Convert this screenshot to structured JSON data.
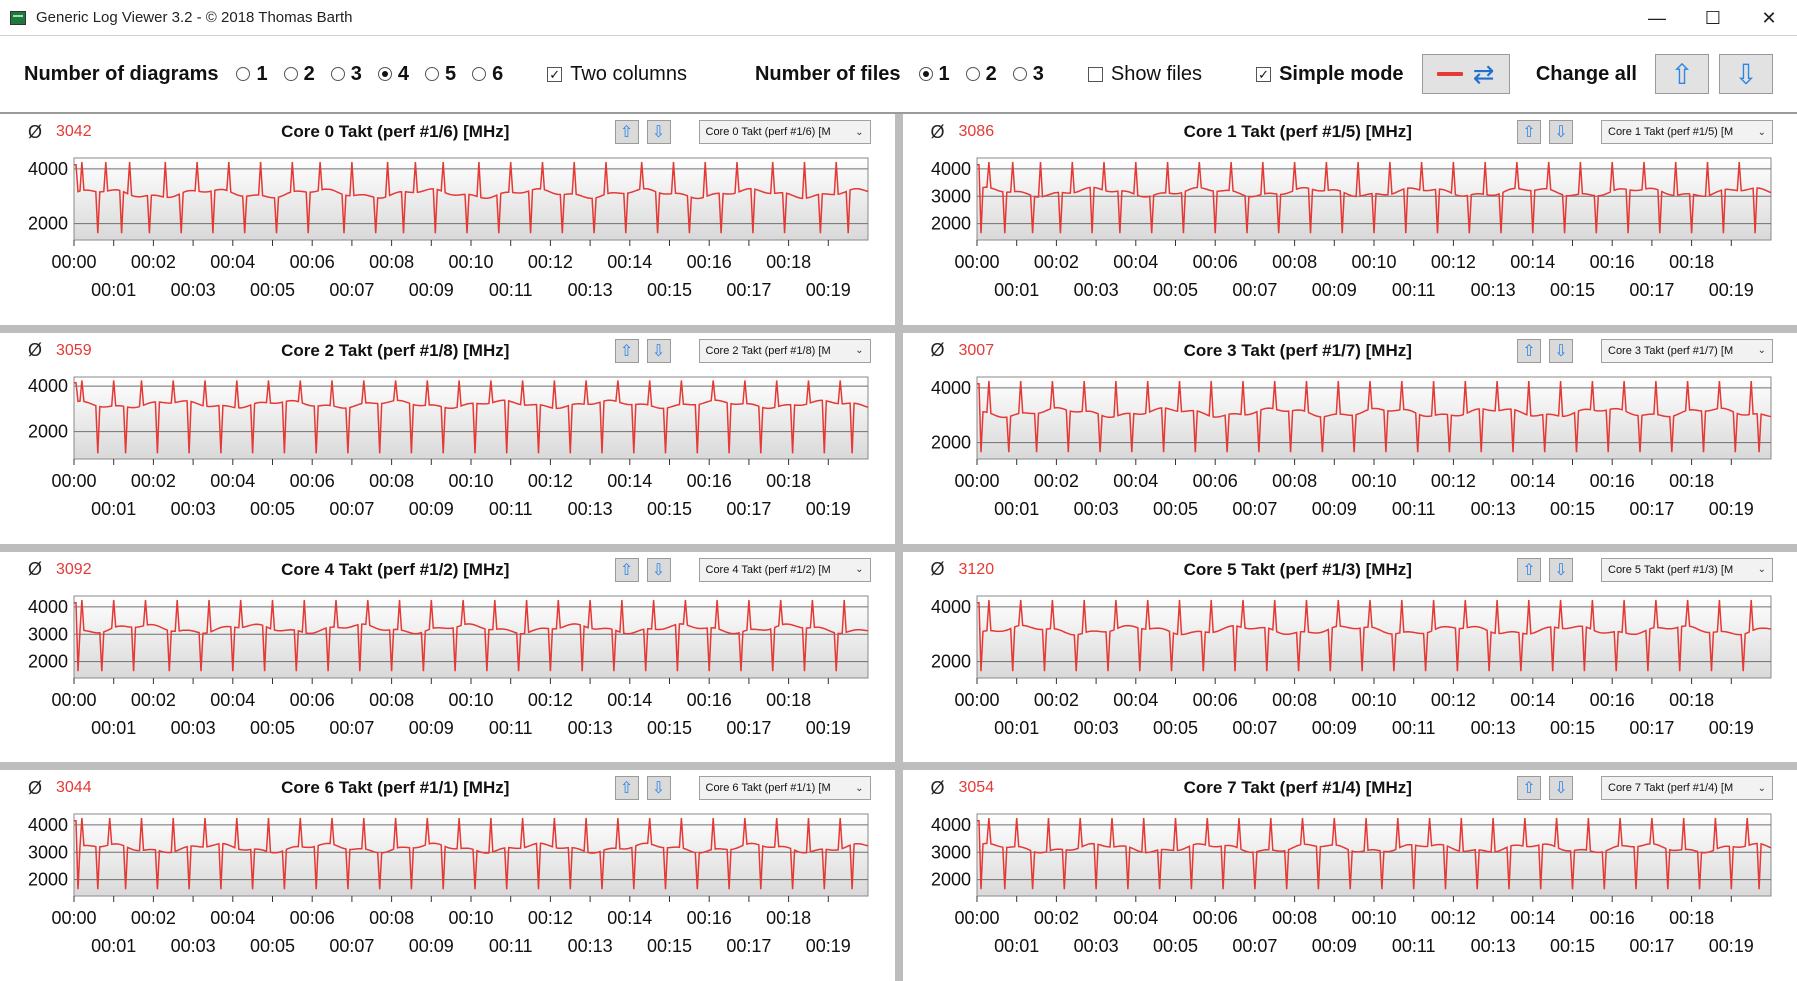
{
  "window": {
    "title": "Generic Log Viewer 3.2 - © 2018 Thomas Barth",
    "controls": {
      "minimize": "—",
      "maximize": "☐",
      "close": "✕"
    }
  },
  "toolbar": {
    "diagrams_label": "Number of diagrams",
    "diagram_options": [
      "1",
      "2",
      "3",
      "4",
      "5",
      "6"
    ],
    "diagram_selected": "4",
    "two_columns_label": "Two columns",
    "two_columns_checked": true,
    "files_label": "Number of files",
    "file_options": [
      "1",
      "2",
      "3"
    ],
    "file_selected": "1",
    "show_files_label": "Show files",
    "show_files_checked": false,
    "simple_mode_label": "Simple mode",
    "simple_mode_checked": true,
    "change_all_label": "Change all"
  },
  "colors": {
    "series": "#e53935",
    "avg": "#e53935",
    "accent_blue": "#2d86e6"
  },
  "panels": [
    {
      "avg_symbol": "Ø",
      "avg": "3042",
      "title": "Core 0 Takt (perf #1/6) [MHz]",
      "selector": "Core 0 Takt (perf #1/6) [M"
    },
    {
      "avg_symbol": "Ø",
      "avg": "3086",
      "title": "Core 1 Takt (perf #1/5) [MHz]",
      "selector": "Core 1 Takt (perf #1/5) [M"
    },
    {
      "avg_symbol": "Ø",
      "avg": "3059",
      "title": "Core 2 Takt (perf #1/8) [MHz]",
      "selector": "Core 2 Takt (perf #1/8) [M"
    },
    {
      "avg_symbol": "Ø",
      "avg": "3007",
      "title": "Core 3 Takt (perf #1/7) [MHz]",
      "selector": "Core 3 Takt (perf #1/7) [M"
    },
    {
      "avg_symbol": "Ø",
      "avg": "3092",
      "title": "Core 4 Takt (perf #1/2) [MHz]",
      "selector": "Core 4 Takt (perf #1/2) [M"
    },
    {
      "avg_symbol": "Ø",
      "avg": "3120",
      "title": "Core 5 Takt (perf #1/3) [MHz]",
      "selector": "Core 5 Takt (perf #1/3) [M"
    },
    {
      "avg_symbol": "Ø",
      "avg": "3044",
      "title": "Core 6 Takt (perf #1/1) [MHz]",
      "selector": "Core 6 Takt (perf #1/1) [M"
    },
    {
      "avg_symbol": "Ø",
      "avg": "3054",
      "title": "Core 7 Takt (perf #1/4) [MHz]",
      "selector": "Core 7 Takt (perf #1/4) [M"
    }
  ],
  "chart_data": [
    {
      "type": "line",
      "title": "Core 0 Takt (perf #1/6) [MHz]",
      "x_range": [
        0,
        20
      ],
      "ylim": [
        1400,
        4400
      ],
      "grid": true,
      "y_ticks": [
        2000,
        4000
      ],
      "x_ticks_top": [
        "00:00",
        "00:02",
        "00:04",
        "00:06",
        "00:08",
        "00:10",
        "00:12",
        "00:14",
        "00:16",
        "00:18"
      ],
      "x_ticks_bottom": [
        "00:01",
        "00:03",
        "00:05",
        "00:07",
        "00:09",
        "00:11",
        "00:13",
        "00:15",
        "00:17",
        "00:19"
      ],
      "series": [
        {
          "name": "Core 0 Takt",
          "baseline": 3100,
          "spikes_up": [
            0.2,
            0.8,
            1.4,
            2.3,
            3.1,
            3.9,
            4.7,
            5.5,
            6.2,
            7.0,
            7.9,
            8.6,
            9.3,
            10.2,
            11.0,
            11.8,
            12.6,
            13.4,
            14.3,
            15.1,
            15.9,
            16.7,
            17.6,
            18.4,
            19.2
          ],
          "spikes_down": [
            0.6,
            1.2,
            1.9,
            2.7,
            3.5,
            4.3,
            5.1,
            5.9,
            6.8,
            7.6,
            8.3,
            9.1,
            9.9,
            10.7,
            11.5,
            12.3,
            13.1,
            13.9,
            14.7,
            15.5,
            16.3,
            17.1,
            17.9,
            18.8,
            19.5
          ]
        }
      ]
    },
    {
      "type": "line",
      "title": "Core 1 Takt (perf #1/5) [MHz]",
      "x_range": [
        0,
        20
      ],
      "ylim": [
        1400,
        4400
      ],
      "grid": true,
      "y_ticks": [
        2000,
        3000,
        4000
      ],
      "x_ticks_top": [
        "00:00",
        "00:02",
        "00:04",
        "00:06",
        "00:08",
        "00:10",
        "00:12",
        "00:14",
        "00:16",
        "00:18"
      ],
      "x_ticks_bottom": [
        "00:01",
        "00:03",
        "00:05",
        "00:07",
        "00:09",
        "00:11",
        "00:13",
        "00:15",
        "00:17",
        "00:19"
      ],
      "series": [
        {
          "name": "Core 1 Takt",
          "baseline": 3150,
          "spikes_up": [
            0.3,
            0.9,
            1.6,
            2.4,
            3.2,
            4.0,
            4.8,
            5.6,
            6.4,
            7.2,
            8.0,
            8.8,
            9.6,
            10.4,
            11.2,
            12.0,
            12.8,
            13.6,
            14.4,
            15.2,
            16.0,
            16.8,
            17.6,
            18.4,
            19.2
          ],
          "spikes_down": [
            0.1,
            0.7,
            1.4,
            2.1,
            2.9,
            3.6,
            4.4,
            5.2,
            6.0,
            6.8,
            7.6,
            8.4,
            9.2,
            10.0,
            10.8,
            11.6,
            12.4,
            13.2,
            14.0,
            14.8,
            15.6,
            16.4,
            17.2,
            18.0,
            18.8,
            19.6
          ]
        }
      ]
    },
    {
      "type": "line",
      "title": "Core 2 Takt (perf #1/8) [MHz]",
      "x_range": [
        0,
        20
      ],
      "ylim": [
        800,
        4400
      ],
      "grid": true,
      "y_ticks": [
        2000,
        4000
      ],
      "x_ticks_top": [
        "00:00",
        "00:02",
        "00:04",
        "00:06",
        "00:08",
        "00:10",
        "00:12",
        "00:14",
        "00:16",
        "00:18"
      ],
      "x_ticks_bottom": [
        "00:01",
        "00:03",
        "00:05",
        "00:07",
        "00:09",
        "00:11",
        "00:13",
        "00:15",
        "00:17",
        "00:19"
      ],
      "series": [
        {
          "name": "Core 2 Takt",
          "baseline": 3200,
          "spikes_up": [
            0.2,
            1.0,
            1.7,
            2.5,
            3.3,
            4.1,
            4.9,
            5.7,
            6.5,
            7.3,
            8.1,
            8.9,
            9.7,
            10.5,
            11.3,
            12.1,
            12.9,
            13.7,
            14.5,
            15.3,
            16.1,
            16.9,
            17.7,
            18.5,
            19.3
          ],
          "spikes_down": [
            0.6,
            1.3,
            2.1,
            2.9,
            3.7,
            4.5,
            5.3,
            6.1,
            6.9,
            7.7,
            8.5,
            9.3,
            10.1,
            10.9,
            11.7,
            12.5,
            13.3,
            14.1,
            14.9,
            15.7,
            16.5,
            17.3,
            18.1,
            18.9,
            19.6
          ]
        }
      ]
    },
    {
      "type": "line",
      "title": "Core 3 Takt (perf #1/7) [MHz]",
      "x_range": [
        0,
        20
      ],
      "ylim": [
        1400,
        4400
      ],
      "grid": true,
      "y_ticks": [
        2000,
        4000
      ],
      "x_ticks_top": [
        "00:00",
        "00:02",
        "00:04",
        "00:06",
        "00:08",
        "00:10",
        "00:12",
        "00:14",
        "00:16",
        "00:18"
      ],
      "x_ticks_bottom": [
        "00:01",
        "00:03",
        "00:05",
        "00:07",
        "00:09",
        "00:11",
        "00:13",
        "00:15",
        "00:17",
        "00:19"
      ],
      "series": [
        {
          "name": "Core 3 Takt",
          "baseline": 3100,
          "spikes_up": [
            0.3,
            1.1,
            1.9,
            2.7,
            3.5,
            4.3,
            5.1,
            5.9,
            6.7,
            7.5,
            8.3,
            9.1,
            9.9,
            10.7,
            11.5,
            12.3,
            13.1,
            13.9,
            14.7,
            15.5,
            16.3,
            17.1,
            17.9,
            18.7,
            19.5
          ],
          "spikes_down": [
            0.1,
            0.8,
            1.5,
            2.3,
            3.1,
            3.9,
            4.7,
            5.5,
            6.3,
            7.1,
            7.9,
            8.7,
            9.5,
            10.3,
            11.1,
            11.9,
            12.7,
            13.5,
            14.3,
            15.1,
            15.9,
            16.7,
            17.5,
            18.3,
            19.1,
            19.7
          ]
        }
      ]
    },
    {
      "type": "line",
      "title": "Core 4 Takt (perf #1/2) [MHz]",
      "x_range": [
        0,
        20
      ],
      "ylim": [
        1400,
        4400
      ],
      "grid": true,
      "y_ticks": [
        2000,
        3000,
        4000
      ],
      "x_ticks_top": [
        "00:00",
        "00:02",
        "00:04",
        "00:06",
        "00:08",
        "00:10",
        "00:12",
        "00:14",
        "00:16",
        "00:18"
      ],
      "x_ticks_bottom": [
        "00:01",
        "00:03",
        "00:05",
        "00:07",
        "00:09",
        "00:11",
        "00:13",
        "00:15",
        "00:17",
        "00:19"
      ],
      "series": [
        {
          "name": "Core 4 Takt",
          "baseline": 3200,
          "spikes_up": [
            0.2,
            1.0,
            1.8,
            2.6,
            3.4,
            4.2,
            5.0,
            5.8,
            6.6,
            7.4,
            8.2,
            9.0,
            9.8,
            10.6,
            11.4,
            12.2,
            13.0,
            13.8,
            14.6,
            15.4,
            16.2,
            17.0,
            17.8,
            18.6,
            19.4
          ],
          "spikes_down": [
            0.1,
            0.7,
            1.5,
            2.4,
            3.2,
            4.0,
            4.8,
            5.6,
            6.4,
            7.2,
            8.0,
            8.8,
            9.6,
            10.4,
            11.2,
            12.0,
            12.8,
            13.6,
            14.4,
            15.2,
            16.0,
            16.8,
            17.6,
            18.4,
            19.2
          ]
        }
      ]
    },
    {
      "type": "line",
      "title": "Core 5 Takt (perf #1/3) [MHz]",
      "x_range": [
        0,
        20
      ],
      "ylim": [
        1400,
        4400
      ],
      "grid": true,
      "y_ticks": [
        2000,
        4000
      ],
      "x_ticks_top": [
        "00:00",
        "00:02",
        "00:04",
        "00:06",
        "00:08",
        "00:10",
        "00:12",
        "00:14",
        "00:16",
        "00:18"
      ],
      "x_ticks_bottom": [
        "00:01",
        "00:03",
        "00:05",
        "00:07",
        "00:09",
        "00:11",
        "00:13",
        "00:15",
        "00:17",
        "00:19"
      ],
      "series": [
        {
          "name": "Core 5 Takt",
          "baseline": 3150,
          "spikes_up": [
            0.3,
            1.1,
            1.9,
            2.7,
            3.5,
            4.3,
            5.1,
            5.9,
            6.7,
            7.5,
            8.3,
            9.1,
            9.9,
            10.7,
            11.5,
            12.3,
            13.1,
            13.9,
            14.7,
            15.5,
            16.3,
            17.1,
            17.9,
            18.7,
            19.5
          ],
          "spikes_down": [
            0.1,
            0.9,
            1.7,
            2.5,
            3.3,
            4.1,
            4.9,
            5.7,
            6.5,
            7.3,
            8.1,
            8.9,
            9.7,
            10.5,
            11.3,
            12.1,
            12.9,
            13.7,
            14.5,
            15.3,
            16.1,
            16.9,
            17.7,
            18.5,
            19.3
          ]
        }
      ]
    },
    {
      "type": "line",
      "title": "Core 6 Takt (perf #1/1) [MHz]",
      "x_range": [
        0,
        20
      ],
      "ylim": [
        1400,
        4400
      ],
      "grid": true,
      "y_ticks": [
        2000,
        3000,
        4000
      ],
      "x_ticks_top": [
        "00:00",
        "00:02",
        "00:04",
        "00:06",
        "00:08",
        "00:10",
        "00:12",
        "00:14",
        "00:16",
        "00:18"
      ],
      "x_ticks_bottom": [
        "00:01",
        "00:03",
        "00:05",
        "00:07",
        "00:09",
        "00:11",
        "00:13",
        "00:15",
        "00:17",
        "00:19"
      ],
      "series": [
        {
          "name": "Core 6 Takt",
          "baseline": 3150,
          "spikes_up": [
            0.2,
            0.9,
            1.7,
            2.5,
            3.3,
            4.1,
            4.9,
            5.7,
            6.5,
            7.3,
            8.1,
            8.9,
            9.7,
            10.5,
            11.3,
            12.1,
            12.9,
            13.7,
            14.5,
            15.3,
            16.1,
            16.9,
            17.7,
            18.5,
            19.3
          ],
          "spikes_down": [
            0.1,
            0.6,
            1.3,
            2.1,
            2.9,
            3.7,
            4.5,
            5.3,
            6.1,
            6.9,
            7.7,
            8.5,
            9.3,
            10.1,
            10.9,
            11.7,
            12.5,
            13.3,
            14.1,
            14.9,
            15.7,
            16.5,
            17.3,
            18.1,
            18.9,
            19.6
          ]
        }
      ]
    },
    {
      "type": "line",
      "title": "Core 7 Takt (perf #1/4) [MHz]",
      "x_range": [
        0,
        20
      ],
      "ylim": [
        1400,
        4400
      ],
      "grid": true,
      "y_ticks": [
        2000,
        3000,
        4000
      ],
      "x_ticks_top": [
        "00:00",
        "00:02",
        "00:04",
        "00:06",
        "00:08",
        "00:10",
        "00:12",
        "00:14",
        "00:16",
        "00:18"
      ],
      "x_ticks_bottom": [
        "00:01",
        "00:03",
        "00:05",
        "00:07",
        "00:09",
        "00:11",
        "00:13",
        "00:15",
        "00:17",
        "00:19"
      ],
      "series": [
        {
          "name": "Core 7 Takt",
          "baseline": 3150,
          "spikes_up": [
            0.3,
            1.0,
            1.8,
            2.6,
            3.4,
            4.2,
            5.0,
            5.8,
            6.6,
            7.4,
            8.2,
            9.0,
            9.8,
            10.6,
            11.4,
            12.2,
            13.0,
            13.8,
            14.6,
            15.4,
            16.2,
            17.0,
            17.8,
            18.6,
            19.4
          ],
          "spikes_down": [
            0.1,
            0.7,
            1.4,
            2.2,
            3.0,
            3.8,
            4.6,
            5.4,
            6.2,
            7.0,
            7.8,
            8.6,
            9.4,
            10.2,
            11.0,
            11.8,
            12.6,
            13.4,
            14.2,
            15.0,
            15.8,
            16.6,
            17.4,
            18.2,
            19.0,
            19.7
          ]
        }
      ]
    }
  ]
}
